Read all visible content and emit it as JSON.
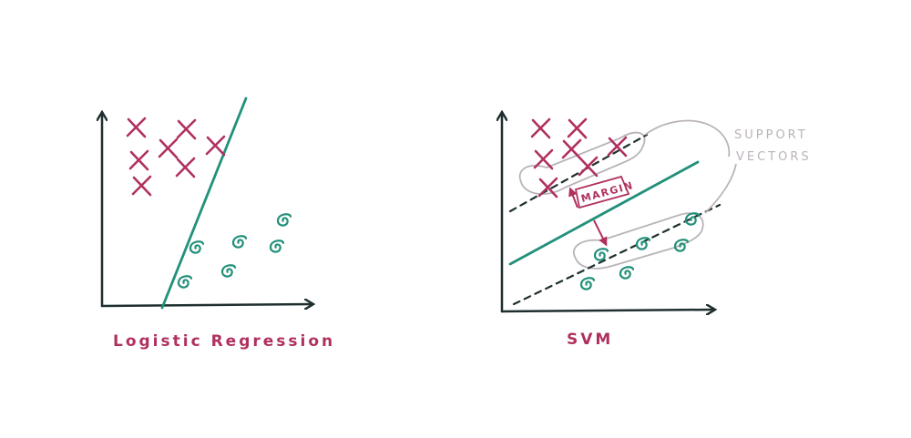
{
  "colors": {
    "axis": "#1f2f2f",
    "cross": "#b0305f",
    "circle": "#22907a",
    "boundary": "#22907a",
    "dashed": "#1f2f2f",
    "support_outline": "#b9b3b9",
    "support_text": "#b9b3b9",
    "annotation": "#b0305f",
    "caption": "#b0305f"
  },
  "left_panel": {
    "caption": "Logistic Regression",
    "icons": {
      "cross": "x-mark-icon",
      "circle": "spiral-circle-icon"
    }
  },
  "right_panel": {
    "caption": "SVM",
    "margin_label": "MARGIN",
    "support_vectors_label": [
      "SUPPORT",
      "VECTORS"
    ],
    "icons": {
      "cross": "x-mark-icon",
      "circle": "spiral-circle-icon"
    }
  }
}
